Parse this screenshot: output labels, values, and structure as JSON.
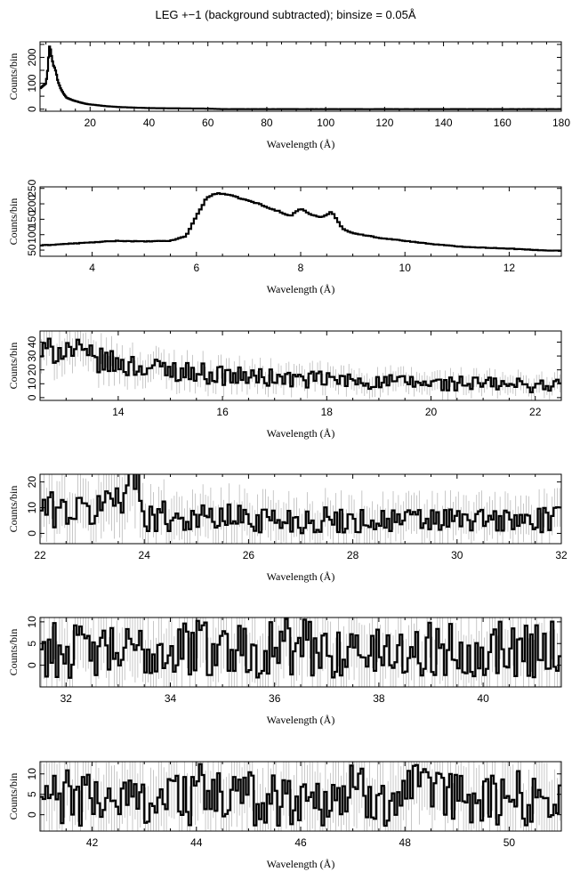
{
  "title": "LEG +−1 (background subtracted); binsize = 0.05Å",
  "chart_data": [
    {
      "type": "line",
      "xlabel": "Wavelength (Å)",
      "ylabel": "Counts/bin",
      "xlim": [
        3,
        180
      ],
      "ylim": [
        -8,
        260
      ],
      "xticks": [
        20,
        40,
        60,
        80,
        100,
        120,
        140,
        160,
        180
      ],
      "yticks": [
        0,
        50,
        100,
        150,
        200,
        250
      ],
      "ytick_labels": [
        "0",
        "",
        "100",
        "",
        "200",
        ""
      ],
      "series": [
        {
          "x": [
            3,
            4,
            5,
            5.5,
            6,
            6.3,
            6.5,
            7,
            7.5,
            8,
            8.5,
            9,
            10,
            11,
            12,
            14,
            16,
            18,
            20,
            22,
            25,
            30,
            40,
            50,
            60,
            65,
            70,
            80,
            100,
            120,
            140,
            160,
            180
          ],
          "y": [
            80,
            90,
            100,
            140,
            215,
            250,
            235,
            200,
            170,
            160,
            140,
            110,
            80,
            60,
            45,
            35,
            28,
            22,
            18,
            16,
            12,
            8,
            4,
            3,
            2,
            0,
            0,
            0,
            0,
            0,
            0,
            0,
            0
          ]
        }
      ]
    },
    {
      "type": "line",
      "xlabel": "Wavelength (Å)",
      "ylabel": "Counts/bin",
      "xlim": [
        3,
        13
      ],
      "ylim": [
        30,
        255
      ],
      "xticks": [
        4,
        6,
        8,
        10,
        12
      ],
      "yticks": [
        50,
        100,
        150,
        200,
        250
      ],
      "ytick_labels": [
        "50",
        "100",
        "150",
        "200",
        "250"
      ],
      "series": [
        {
          "x": [
            3,
            3.5,
            4,
            4.5,
            5,
            5.5,
            5.8,
            6.0,
            6.2,
            6.4,
            6.6,
            6.8,
            7.0,
            7.2,
            7.4,
            7.6,
            7.8,
            8.0,
            8.2,
            8.4,
            8.6,
            8.8,
            9.0,
            9.5,
            10,
            10.5,
            11,
            11.5,
            12,
            12.5,
            13
          ],
          "y": [
            65,
            70,
            75,
            80,
            78,
            80,
            95,
            160,
            220,
            235,
            230,
            220,
            210,
            200,
            185,
            175,
            160,
            185,
            165,
            155,
            175,
            120,
            105,
            90,
            80,
            70,
            62,
            58,
            55,
            50,
            48
          ]
        }
      ]
    },
    {
      "type": "line",
      "xlabel": "Wavelength (Å)",
      "ylabel": "Counts/bin",
      "xlim": [
        12.5,
        22.5
      ],
      "ylim": [
        -2,
        48
      ],
      "xticks": [
        14,
        16,
        18,
        20,
        22
      ],
      "yticks": [
        0,
        10,
        20,
        30,
        40
      ],
      "ytick_labels": [
        "0",
        "10",
        "20",
        "30",
        "40"
      ],
      "series": [
        {
          "x": [
            12.5,
            13,
            13.5,
            14,
            14.5,
            15,
            15.5,
            16,
            16.5,
            17,
            17.5,
            18,
            18.5,
            19,
            19.5,
            20,
            20.5,
            21,
            21.5,
            22,
            22.5
          ],
          "y": [
            32,
            36,
            28,
            24,
            22,
            20,
            18,
            16,
            15,
            14,
            13,
            13,
            12,
            11,
            11,
            10,
            10,
            10,
            9,
            9,
            9
          ]
        }
      ]
    },
    {
      "type": "line",
      "xlabel": "Wavelength (Å)",
      "ylabel": "Counts/bin",
      "xlim": [
        22,
        32
      ],
      "ylim": [
        -4,
        23
      ],
      "xticks": [
        22,
        24,
        26,
        28,
        30,
        32
      ],
      "yticks": [
        0,
        10,
        20
      ],
      "ytick_labels": [
        "0",
        "10",
        "20"
      ],
      "series": [
        {
          "x": [
            22,
            23,
            23.9,
            24,
            25,
            26,
            27,
            28,
            29,
            30,
            31,
            32
          ],
          "y": [
            10,
            8,
            22,
            7,
            6,
            6,
            5,
            5,
            5,
            5,
            5,
            5
          ]
        }
      ]
    },
    {
      "type": "line",
      "xlabel": "Wavelength (Å)",
      "ylabel": "Counts/bin",
      "xlim": [
        31.5,
        41.5
      ],
      "ylim": [
        -5,
        11
      ],
      "xticks": [
        32,
        34,
        36,
        38,
        40
      ],
      "yticks": [
        0,
        5,
        10
      ],
      "ytick_labels": [
        "0",
        "5",
        "10"
      ],
      "series": [
        {
          "x": [
            31.5,
            32.5,
            33.5,
            34.5,
            35.5,
            36.5,
            37.5,
            38.5,
            39.5,
            40.5,
            41.5
          ],
          "y": [
            4,
            3,
            3,
            4,
            4,
            4,
            3,
            3,
            4,
            4,
            4
          ]
        }
      ]
    },
    {
      "type": "line",
      "xlabel": "Wavelength (Å)",
      "ylabel": "Counts/bin",
      "xlim": [
        41,
        51
      ],
      "ylim": [
        -4,
        13
      ],
      "xticks": [
        42,
        44,
        46,
        48,
        50
      ],
      "yticks": [
        0,
        5,
        10
      ],
      "ytick_labels": [
        "0",
        "5",
        "10"
      ],
      "series": [
        {
          "x": [
            41,
            42,
            43,
            44,
            45,
            46,
            47,
            48,
            49,
            50,
            51
          ],
          "y": [
            4,
            4,
            4,
            5,
            4,
            4,
            5,
            5,
            4,
            4,
            4
          ]
        }
      ]
    }
  ]
}
